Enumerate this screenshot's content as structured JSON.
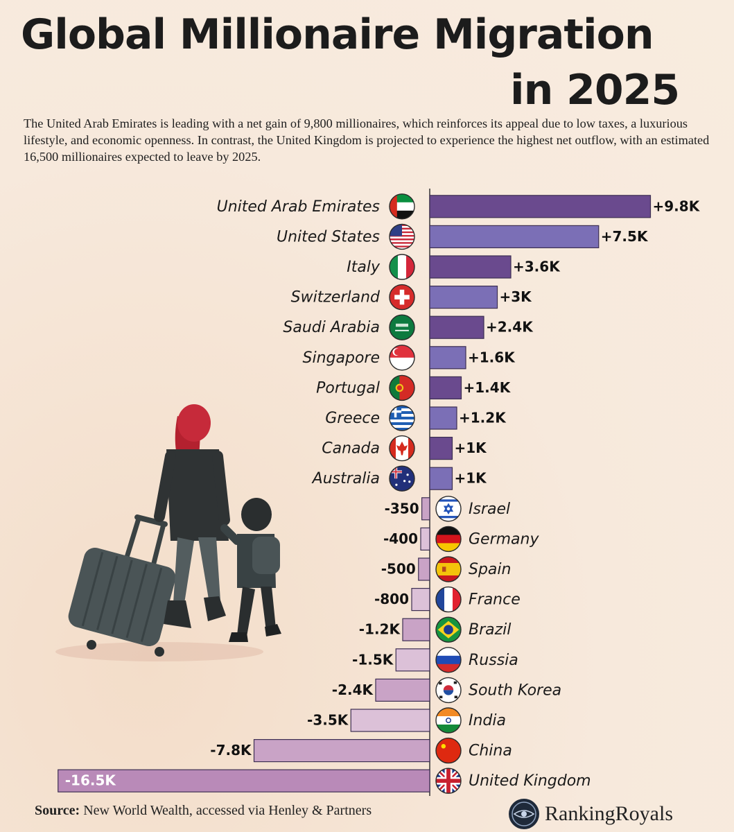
{
  "title_line1": "Global Millionaire Migration",
  "title_line2": "in 2025",
  "subtitle": "The United Arab Emirates is leading with a net gain of 9,800 millionaires, which reinforces its appeal due to low taxes, a luxurious lifestyle, and economic openness. In contrast, the United Kingdom is projected to experience the highest net outflow, with an estimated 16,500 millionaires expected to leave by 2025.",
  "source_label": "Source:",
  "source_text": "New World Wealth, accessed via Henley & Partners",
  "brand": "RankingRoyals",
  "colors": {
    "positive_dark": "#6a4a8e",
    "positive_light": "#7b6fb6",
    "negative": "#c9a3c6",
    "negative_light": "#dcc1d8",
    "uk": "#b98ab8"
  },
  "chart_data": {
    "type": "bar",
    "orientation": "horizontal",
    "unit": "millionaires (net)",
    "grid": false,
    "bars": [
      {
        "country": "United Arab Emirates",
        "value": 9800,
        "label": "+9.8K",
        "flag": "uae-flag"
      },
      {
        "country": "United States",
        "value": 7500,
        "label": "+7.5K",
        "flag": "usa-flag"
      },
      {
        "country": "Italy",
        "value": 3600,
        "label": "+3.6K",
        "flag": "italy-flag"
      },
      {
        "country": "Switzerland",
        "value": 3000,
        "label": "+3K",
        "flag": "switzerland-flag"
      },
      {
        "country": "Saudi Arabia",
        "value": 2400,
        "label": "+2.4K",
        "flag": "saudi-arabia-flag"
      },
      {
        "country": "Singapore",
        "value": 1600,
        "label": "+1.6K",
        "flag": "singapore-flag"
      },
      {
        "country": "Portugal",
        "value": 1400,
        "label": "+1.4K",
        "flag": "portugal-flag"
      },
      {
        "country": "Greece",
        "value": 1200,
        "label": "+1.2K",
        "flag": "greece-flag"
      },
      {
        "country": "Canada",
        "value": 1000,
        "label": "+1K",
        "flag": "canada-flag"
      },
      {
        "country": "Australia",
        "value": 1000,
        "label": "+1K",
        "flag": "australia-flag"
      },
      {
        "country": "Israel",
        "value": -350,
        "label": "-350",
        "flag": "israel-flag"
      },
      {
        "country": "Germany",
        "value": -400,
        "label": "-400",
        "flag": "germany-flag"
      },
      {
        "country": "Spain",
        "value": -500,
        "label": "-500",
        "flag": "spain-flag"
      },
      {
        "country": "France",
        "value": -800,
        "label": "-800",
        "flag": "france-flag"
      },
      {
        "country": "Brazil",
        "value": -1200,
        "label": "-1.2K",
        "flag": "brazil-flag"
      },
      {
        "country": "Russia",
        "value": -1500,
        "label": "-1.5K",
        "flag": "russia-flag"
      },
      {
        "country": "South Korea",
        "value": -2400,
        "label": "-2.4K",
        "flag": "south-korea-flag"
      },
      {
        "country": "India",
        "value": -3500,
        "label": "-3.5K",
        "flag": "india-flag"
      },
      {
        "country": "China",
        "value": -7800,
        "label": "-7.8K",
        "flag": "china-flag"
      },
      {
        "country": "United Kingdom",
        "value": -16500,
        "label": "-16.5K",
        "flag": "uk-flag"
      }
    ]
  }
}
